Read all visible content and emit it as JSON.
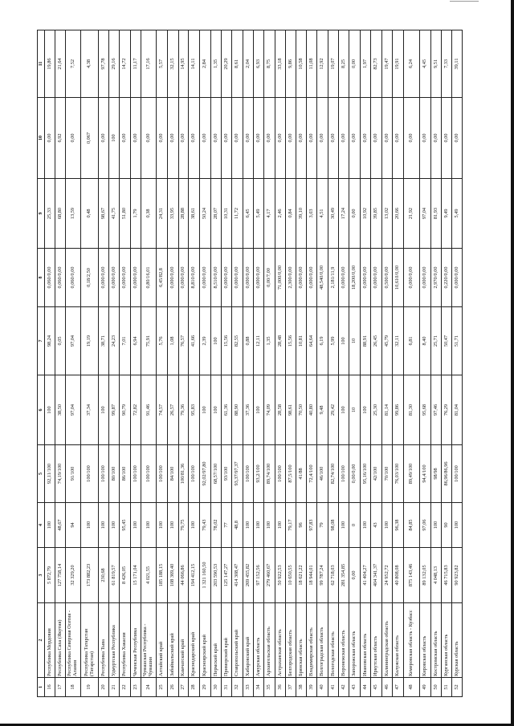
{
  "table": {
    "header": [
      "1",
      "2",
      "3",
      "4",
      "5",
      "6",
      "7",
      "8",
      "9",
      "10",
      "11"
    ],
    "rows": [
      [
        "16",
        "Республика Мордовия",
        "5 872,79",
        "100",
        "92,11/100",
        "100",
        "98,24",
        "0,060/0,00",
        "25,33",
        "0,00",
        "19,86"
      ],
      [
        "17",
        "Республика Саха (Якутия)",
        "127 758,14",
        "48,67",
        "74,19/100",
        "38,50",
        "0,05",
        "0,060/0,00",
        "68,80",
        "6,92",
        "21,64"
      ],
      [
        "18",
        "Республика Северная Осетия - Алания",
        "32 329,20",
        "94",
        "91/100",
        "97,04",
        "97,04",
        "0,060/0,00",
        "13,59",
        "0,00",
        "7,52"
      ],
      [
        "19",
        "Республика Татарстан (Татарстан)",
        "173 882,23",
        "100",
        "100/100",
        "37,34",
        "19,19",
        "0,18/2,50",
        "0,48",
        "0,067",
        "4,38"
      ],
      [
        "20",
        "Республика Тыва",
        "230,68",
        "100",
        "100/100",
        "100",
        "38,71",
        "0,000/0,00",
        "98,67",
        "0,00",
        "97,78"
      ],
      [
        "21",
        "Удмуртская Республика",
        "61 819,57",
        "100",
        "80/100",
        "99,87",
        "24,23",
        "0,000/0,00",
        "41,75",
        "100",
        "29,16"
      ],
      [
        "22",
        "Республика Хакасия",
        "8 426,05",
        "95,45",
        "86/100",
        "90,79",
        "7,01",
        "0,000/0,00",
        "51,80",
        "0,00",
        "14,72"
      ],
      [
        "23",
        "Чеченская Республика",
        "15 171,04",
        "100",
        "100/100",
        "72,82",
        "6,94",
        "0,000/0,00",
        "1,79",
        "0,00",
        "11,17"
      ],
      [
        "24",
        "Чувашская Республика - Чувашия",
        "4 021,55",
        "100",
        "100/100",
        "91,46",
        "75,91",
        "0,80/16,01",
        "0,38",
        "0,00",
        "17,16"
      ],
      [
        "25",
        "Алтайский край",
        "185 188,15",
        "100",
        "100/100",
        "74,57",
        "5,76",
        "6,45/82,8",
        "24,31",
        "0,00",
        "5,57"
      ],
      [
        "26",
        "Забайкальский край",
        "108 369,40",
        "100",
        "84/100",
        "26,57",
        "1,08",
        "0,000/0,00",
        "33,95",
        "0,00",
        "32,15"
      ],
      [
        "27",
        "Камчатский край",
        "44 066,86",
        "79,75",
        "100/81,36",
        "79,36",
        "76,57",
        "0,000/0,00",
        "28,88",
        "0,00",
        "14,95"
      ],
      [
        "28",
        "Краснодарский край",
        "194 412,15",
        "100",
        "100/100",
        "95,83",
        "41,66",
        "8,810/0,00",
        "38,61",
        "0,00",
        "14,11"
      ],
      [
        "29",
        "Красноярский край",
        "1 321 160,50",
        "79,43",
        "92,02/97,80",
        "100",
        "2,39",
        "0,000/0,00",
        "50,24",
        "0,00",
        "2,84"
      ],
      [
        "30",
        "Пермский край",
        "203 590,53",
        "78,02",
        "68,57/100",
        "100",
        "100",
        "8,510/0,00",
        "28,07",
        "0,00",
        "1,35"
      ],
      [
        "31",
        "Приморский край",
        "125 147,27",
        "77",
        "93/100",
        "61,36",
        "15,56",
        "0,000/0,00",
        "10,31",
        "0,00",
        "20,29"
      ],
      [
        "32",
        "Ставропольский край",
        "414 308,47",
        "48,8",
        "93,37/97,37",
        "88,90",
        "82,55",
        "0,000/0,00",
        "11,72",
        "0,00",
        "8,61"
      ],
      [
        "33",
        "Хабаровский край",
        "269 455,82",
        "100",
        "100/100",
        "37,36",
        "0,88",
        "0,000/0,00",
        "6,45",
        "0,00",
        "2,04"
      ],
      [
        "34",
        "Амурская область",
        "97 152,56",
        "100",
        "93,2/100",
        "100",
        "12,11",
        "0,000/0,00",
        "5,49",
        "0,00",
        "6,93"
      ],
      [
        "35",
        "Архангельская область",
        "279 460,67",
        "100",
        "89,74/100",
        "74,09",
        "1,35",
        "0,00/7,00",
        "4,17",
        "0,00",
        "8,75"
      ],
      [
        "36",
        "Астраханская область",
        "50 922,53",
        "100",
        "100/100",
        "28,58",
        "28,48",
        "71,000/0,00",
        "2,46",
        "0,00",
        "33,18"
      ],
      [
        "37",
        "Белгородская область",
        "10 650,55",
        "79,17",
        "87,5/100",
        "98,61",
        "15,56",
        "2,300/0,00",
        "0,84",
        "0,00",
        "9,86"
      ],
      [
        "38",
        "Брянская область",
        "18 621,22",
        "96",
        "41/88",
        "70,50",
        "10,81",
        "0,000/0,00",
        "39,10",
        "0,00",
        "10,58"
      ],
      [
        "39",
        "Владимирская область",
        "18 944,01",
        "97,83",
        "72,4/100",
        "40,80",
        "64,64",
        "0,000/0,00",
        "3,03",
        "0,00",
        "11,08"
      ],
      [
        "40",
        "Волгоградская область",
        "99 787,24",
        "79",
        "46/100",
        "9,48",
        "6,19",
        "48,540/0,00",
        "4,51",
        "0,00",
        "12,92"
      ],
      [
        "41",
        "Вологодская область",
        "62 718,03",
        "98,08",
        "82,74/100",
        "29,42",
        "5,99",
        "2,181/11,9",
        "30,49",
        "0,00",
        "19,07"
      ],
      [
        "42",
        "Воронежская область",
        "281 354,85",
        "100",
        "100/100",
        "100",
        "100",
        "0,000/0,00",
        "17,24",
        "0,00",
        "8,25"
      ],
      [
        "43",
        "Запорожская область",
        "0,00",
        "0",
        "0,00/0,00",
        "10",
        "10",
        "18,200/0,00",
        "0,00",
        "0,00",
        "0,00"
      ],
      [
        "44",
        "Ивановская область",
        "41 404,27",
        "100",
        "95,16/100",
        "100",
        "88,91",
        "0,000/0,00",
        "10,92",
        "0,00",
        "1,97"
      ],
      [
        "45",
        "Иркутская область",
        "404 341,37",
        "43",
        "42/100",
        "25,30",
        "26,45",
        "0,000/0,00",
        "39,85",
        "0,00",
        "82,73"
      ],
      [
        "46",
        "Калининградская область",
        "24 952,72",
        "100",
        "70/100",
        "81,14",
        "45,79",
        "0,500/0,00",
        "13,02",
        "0,00",
        "19,47"
      ],
      [
        "47",
        "Калужская область",
        "40 808,08",
        "96,38",
        "76,03/100",
        "99,86",
        "32,11",
        "10,610/0,00",
        "20,66",
        "0,00",
        "19,91"
      ],
      [
        "48",
        "Кемеровская область - Кузбасс",
        "875 143,46",
        "84,85",
        "89,49/100",
        "81,30",
        "6,81",
        "0,000/0,00",
        "21,92",
        "0,00",
        "6,24"
      ],
      [
        "49",
        "Кировская область",
        "89 132,05",
        "97,06",
        "94,4/100",
        "95,68",
        "8,40",
        "0,000/0,00",
        "97,04",
        "0,00",
        "4,45"
      ],
      [
        "50",
        "Костромская область",
        "4 048,13",
        "100",
        "98/98",
        "97,46",
        "25,71",
        "2,970/0,00",
        "81,93",
        "0,00",
        "9,51"
      ],
      [
        "51",
        "Курганская область",
        "46 715,83",
        "90",
        "86,96/86,96",
        "76,29",
        "50,47",
        "0,220/0,00",
        "9,49",
        "0,00",
        "7,33"
      ],
      [
        "52",
        "Курская область",
        "90 923,82",
        "100",
        "100/100",
        "81,04",
        "51,71",
        "0,000/0,00",
        "5,49",
        "0,00",
        "39,11"
      ]
    ]
  }
}
